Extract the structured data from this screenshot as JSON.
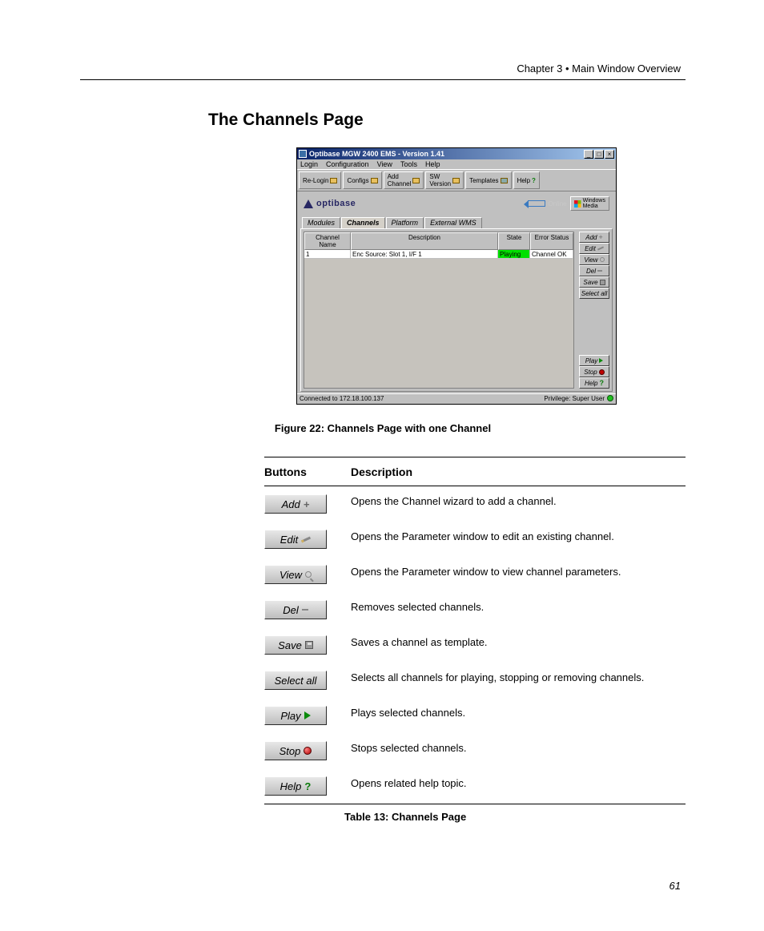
{
  "chapter_line": "Chapter 3 • Main Window Overview",
  "heading": "The Channels Page",
  "figure_caption": "Figure 22: Channels Page with one Channel",
  "table_caption": "Table  13: Channels Page",
  "page_number": "61",
  "app": {
    "title": "Optibase MGW 2400 EMS - Version 1.41",
    "menus": [
      "Login",
      "Configuration",
      "View",
      "Tools",
      "Help"
    ],
    "toolbar": {
      "relogin": "Re-Login",
      "configs": "Configs",
      "add_channel": "Add\nChannel",
      "sw_version": "SW\nVersion",
      "templates": "Templates",
      "help": "Help"
    },
    "brand": "optibase",
    "online_label": "Online",
    "winmedia_label": "Windows\nMedia",
    "tabs": [
      "Modules",
      "Channels",
      "Platform",
      "External WMS"
    ],
    "active_tab_index": 1,
    "grid": {
      "headers": {
        "name": "Channel Name",
        "desc": "Description",
        "state": "State",
        "err": "Error Status"
      },
      "rows": [
        {
          "name": "1",
          "desc": "Enc Source: Slot 1, I/F 1",
          "state": "Playing",
          "state_color": "#00e000",
          "err": "Channel OK"
        }
      ]
    },
    "side_buttons_top": [
      {
        "label": "Add",
        "icon": "plus"
      },
      {
        "label": "Edit",
        "icon": "pencil"
      },
      {
        "label": "View",
        "icon": "mag"
      },
      {
        "label": "Del",
        "icon": "minus"
      },
      {
        "label": "Save",
        "icon": "disk"
      },
      {
        "label": "Select all",
        "icon": ""
      }
    ],
    "side_buttons_bottom": [
      {
        "label": "Play",
        "icon": "play"
      },
      {
        "label": "Stop",
        "icon": "stop"
      },
      {
        "label": "Help",
        "icon": "help"
      }
    ],
    "status_left": "Connected to 172.18.100.137",
    "status_right": "Privilege: Super User"
  },
  "desc_table": {
    "header_buttons": "Buttons",
    "header_desc": "Description",
    "rows": [
      {
        "label": "Add",
        "icon": "plus",
        "desc": "Opens the Channel wizard to add a channel."
      },
      {
        "label": "Edit",
        "icon": "pencil",
        "desc": "Opens the Parameter window to edit an existing channel."
      },
      {
        "label": "View",
        "icon": "mag",
        "desc": "Opens the Parameter window to view channel parameters."
      },
      {
        "label": "Del",
        "icon": "minus",
        "desc": "Removes selected channels."
      },
      {
        "label": "Save",
        "icon": "disk",
        "desc": "Saves a channel as template."
      },
      {
        "label": "Select all",
        "icon": "",
        "desc": "Selects all channels for playing, stopping or removing channels."
      },
      {
        "label": "Play",
        "icon": "play",
        "desc": "Plays selected channels."
      },
      {
        "label": "Stop",
        "icon": "stop",
        "desc": "Stops selected channels."
      },
      {
        "label": "Help",
        "icon": "help",
        "desc": "Opens related help topic."
      }
    ]
  },
  "colors": {
    "titlebar_gradient_from": "#0a246a",
    "titlebar_gradient_to": "#a6caf0",
    "window_bg": "#c0c0c0",
    "state_playing": "#00e000",
    "brand_color": "#272763"
  }
}
